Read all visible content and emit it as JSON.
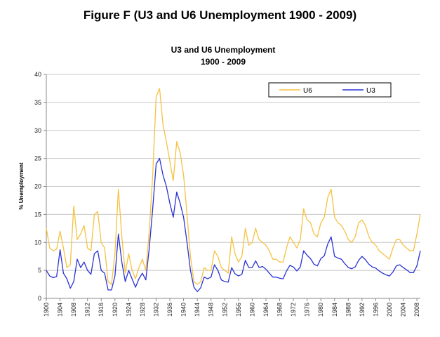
{
  "figure_title": "Figure F (U3 and U6 Unemployment 1900 - 2009)",
  "chart_data": {
    "type": "line",
    "title": "U3 and U6 Unemployment",
    "subtitle": "1900 - 2009",
    "xlabel": "",
    "ylabel": "% Unemployment",
    "xlim": [
      1900,
      2009
    ],
    "ylim": [
      0,
      40
    ],
    "yticks": [
      0,
      5,
      10,
      15,
      20,
      25,
      30,
      35,
      40
    ],
    "xticks": [
      "1900",
      "1904",
      "1908",
      "1912",
      "1916",
      "1920",
      "1924",
      "1928",
      "1932",
      "1936",
      "1940",
      "1944",
      "1948",
      "1952",
      "1956",
      "1960",
      "1964",
      "1968",
      "1972",
      "1976",
      "1980",
      "1984",
      "1988",
      "1992",
      "1996",
      "2000",
      "2004",
      "2008"
    ],
    "grid": "horizontal",
    "legend_position": "top-right",
    "series": [
      {
        "name": "U6",
        "color": "#f5c242",
        "points": [
          [
            1900,
            12.5
          ],
          [
            1901,
            9.0
          ],
          [
            1902,
            8.5
          ],
          [
            1903,
            8.8
          ],
          [
            1904,
            12.0
          ],
          [
            1905,
            9.0
          ],
          [
            1906,
            5.5
          ],
          [
            1907,
            6.0
          ],
          [
            1908,
            16.5
          ],
          [
            1909,
            10.5
          ],
          [
            1910,
            11.5
          ],
          [
            1911,
            13.0
          ],
          [
            1912,
            9.0
          ],
          [
            1913,
            8.5
          ],
          [
            1914,
            15.0
          ],
          [
            1915,
            15.5
          ],
          [
            1916,
            10.0
          ],
          [
            1917,
            9.0
          ],
          [
            1918,
            3.0
          ],
          [
            1919,
            2.5
          ],
          [
            1920,
            8.0
          ],
          [
            1921,
            19.5
          ],
          [
            1922,
            11.0
          ],
          [
            1923,
            4.5
          ],
          [
            1924,
            8.0
          ],
          [
            1925,
            5.0
          ],
          [
            1926,
            3.5
          ],
          [
            1927,
            5.5
          ],
          [
            1928,
            7.0
          ],
          [
            1929,
            5.0
          ],
          [
            1930,
            12.0
          ],
          [
            1931,
            22.0
          ],
          [
            1932,
            36.0
          ],
          [
            1933,
            37.5
          ],
          [
            1934,
            31.0
          ],
          [
            1935,
            28.0
          ],
          [
            1936,
            24.5
          ],
          [
            1937,
            21.0
          ],
          [
            1938,
            28.0
          ],
          [
            1939,
            26.0
          ],
          [
            1940,
            22.0
          ],
          [
            1941,
            15.0
          ],
          [
            1942,
            7.5
          ],
          [
            1943,
            3.0
          ],
          [
            1944,
            2.5
          ],
          [
            1945,
            3.0
          ],
          [
            1946,
            5.5
          ],
          [
            1947,
            5.0
          ],
          [
            1948,
            5.0
          ],
          [
            1949,
            8.5
          ],
          [
            1950,
            7.5
          ],
          [
            1951,
            5.5
          ],
          [
            1952,
            5.0
          ],
          [
            1953,
            4.5
          ],
          [
            1954,
            11.0
          ],
          [
            1955,
            8.0
          ],
          [
            1956,
            6.5
          ],
          [
            1957,
            7.5
          ],
          [
            1958,
            12.5
          ],
          [
            1959,
            9.5
          ],
          [
            1960,
            10.0
          ],
          [
            1961,
            12.5
          ],
          [
            1962,
            10.5
          ],
          [
            1963,
            10.0
          ],
          [
            1964,
            9.5
          ],
          [
            1965,
            8.5
          ],
          [
            1966,
            7.0
          ],
          [
            1967,
            7.0
          ],
          [
            1968,
            6.5
          ],
          [
            1969,
            6.5
          ],
          [
            1970,
            9.0
          ],
          [
            1971,
            11.0
          ],
          [
            1972,
            10.0
          ],
          [
            1973,
            9.0
          ],
          [
            1974,
            10.5
          ],
          [
            1975,
            16.0
          ],
          [
            1976,
            14.0
          ],
          [
            1977,
            13.5
          ],
          [
            1978,
            11.5
          ],
          [
            1979,
            11.0
          ],
          [
            1980,
            13.5
          ],
          [
            1981,
            14.5
          ],
          [
            1982,
            18.0
          ],
          [
            1983,
            19.5
          ],
          [
            1984,
            14.5
          ],
          [
            1985,
            13.5
          ],
          [
            1986,
            13.0
          ],
          [
            1987,
            12.0
          ],
          [
            1988,
            10.5
          ],
          [
            1989,
            10.0
          ],
          [
            1990,
            11.0
          ],
          [
            1991,
            13.5
          ],
          [
            1992,
            14.0
          ],
          [
            1993,
            13.0
          ],
          [
            1994,
            11.0
          ],
          [
            1995,
            10.0
          ],
          [
            1996,
            9.5
          ],
          [
            1997,
            8.5
          ],
          [
            1998,
            8.0
          ],
          [
            1999,
            7.5
          ],
          [
            2000,
            7.0
          ],
          [
            2001,
            9.0
          ],
          [
            2002,
            10.5
          ],
          [
            2003,
            10.5
          ],
          [
            2004,
            9.5
          ],
          [
            2005,
            9.0
          ],
          [
            2006,
            8.5
          ],
          [
            2007,
            8.5
          ],
          [
            2008,
            11.5
          ],
          [
            2009,
            15.0
          ]
        ]
      },
      {
        "name": "U3",
        "color": "#2a33d4",
        "points": [
          [
            1900,
            5.0
          ],
          [
            1901,
            4.0
          ],
          [
            1902,
            3.7
          ],
          [
            1903,
            3.9
          ],
          [
            1904,
            8.7
          ],
          [
            1905,
            4.5
          ],
          [
            1906,
            3.5
          ],
          [
            1907,
            1.8
          ],
          [
            1908,
            3.0
          ],
          [
            1909,
            7.0
          ],
          [
            1910,
            5.5
          ],
          [
            1911,
            6.5
          ],
          [
            1912,
            5.0
          ],
          [
            1913,
            4.3
          ],
          [
            1914,
            8.0
          ],
          [
            1915,
            8.5
          ],
          [
            1916,
            5.0
          ],
          [
            1917,
            4.5
          ],
          [
            1918,
            1.5
          ],
          [
            1919,
            1.5
          ],
          [
            1920,
            4.0
          ],
          [
            1921,
            11.5
          ],
          [
            1922,
            6.5
          ],
          [
            1923,
            3.0
          ],
          [
            1924,
            5.0
          ],
          [
            1925,
            3.5
          ],
          [
            1926,
            2.0
          ],
          [
            1927,
            3.5
          ],
          [
            1928,
            4.5
          ],
          [
            1929,
            3.3
          ],
          [
            1930,
            9.0
          ],
          [
            1931,
            16.0
          ],
          [
            1932,
            24.0
          ],
          [
            1933,
            25.0
          ],
          [
            1934,
            22.0
          ],
          [
            1935,
            20.0
          ],
          [
            1936,
            17.0
          ],
          [
            1937,
            14.5
          ],
          [
            1938,
            19.0
          ],
          [
            1939,
            17.0
          ],
          [
            1940,
            14.5
          ],
          [
            1941,
            10.0
          ],
          [
            1942,
            5.0
          ],
          [
            1943,
            2.0
          ],
          [
            1944,
            1.2
          ],
          [
            1945,
            1.9
          ],
          [
            1946,
            3.8
          ],
          [
            1947,
            3.5
          ],
          [
            1948,
            3.8
          ],
          [
            1949,
            6.0
          ],
          [
            1950,
            5.0
          ],
          [
            1951,
            3.3
          ],
          [
            1952,
            3.0
          ],
          [
            1953,
            2.9
          ],
          [
            1954,
            5.5
          ],
          [
            1955,
            4.4
          ],
          [
            1956,
            4.0
          ],
          [
            1957,
            4.3
          ],
          [
            1958,
            6.8
          ],
          [
            1959,
            5.5
          ],
          [
            1960,
            5.5
          ],
          [
            1961,
            6.7
          ],
          [
            1962,
            5.5
          ],
          [
            1963,
            5.7
          ],
          [
            1964,
            5.2
          ],
          [
            1965,
            4.5
          ],
          [
            1966,
            3.8
          ],
          [
            1967,
            3.8
          ],
          [
            1968,
            3.6
          ],
          [
            1969,
            3.5
          ],
          [
            1970,
            4.9
          ],
          [
            1971,
            5.9
          ],
          [
            1972,
            5.6
          ],
          [
            1973,
            4.9
          ],
          [
            1974,
            5.6
          ],
          [
            1975,
            8.5
          ],
          [
            1976,
            7.7
          ],
          [
            1977,
            7.1
          ],
          [
            1978,
            6.1
          ],
          [
            1979,
            5.8
          ],
          [
            1980,
            7.1
          ],
          [
            1981,
            7.6
          ],
          [
            1982,
            9.7
          ],
          [
            1983,
            11.0
          ],
          [
            1984,
            7.5
          ],
          [
            1985,
            7.2
          ],
          [
            1986,
            7.0
          ],
          [
            1987,
            6.2
          ],
          [
            1988,
            5.5
          ],
          [
            1989,
            5.3
          ],
          [
            1990,
            5.6
          ],
          [
            1991,
            6.8
          ],
          [
            1992,
            7.5
          ],
          [
            1993,
            6.9
          ],
          [
            1994,
            6.1
          ],
          [
            1995,
            5.6
          ],
          [
            1996,
            5.4
          ],
          [
            1997,
            4.9
          ],
          [
            1998,
            4.5
          ],
          [
            1999,
            4.2
          ],
          [
            2000,
            4.0
          ],
          [
            2001,
            4.7
          ],
          [
            2002,
            5.8
          ],
          [
            2003,
            6.0
          ],
          [
            2004,
            5.5
          ],
          [
            2005,
            5.1
          ],
          [
            2006,
            4.6
          ],
          [
            2007,
            4.6
          ],
          [
            2008,
            5.8
          ],
          [
            2009,
            8.5
          ]
        ]
      }
    ]
  }
}
